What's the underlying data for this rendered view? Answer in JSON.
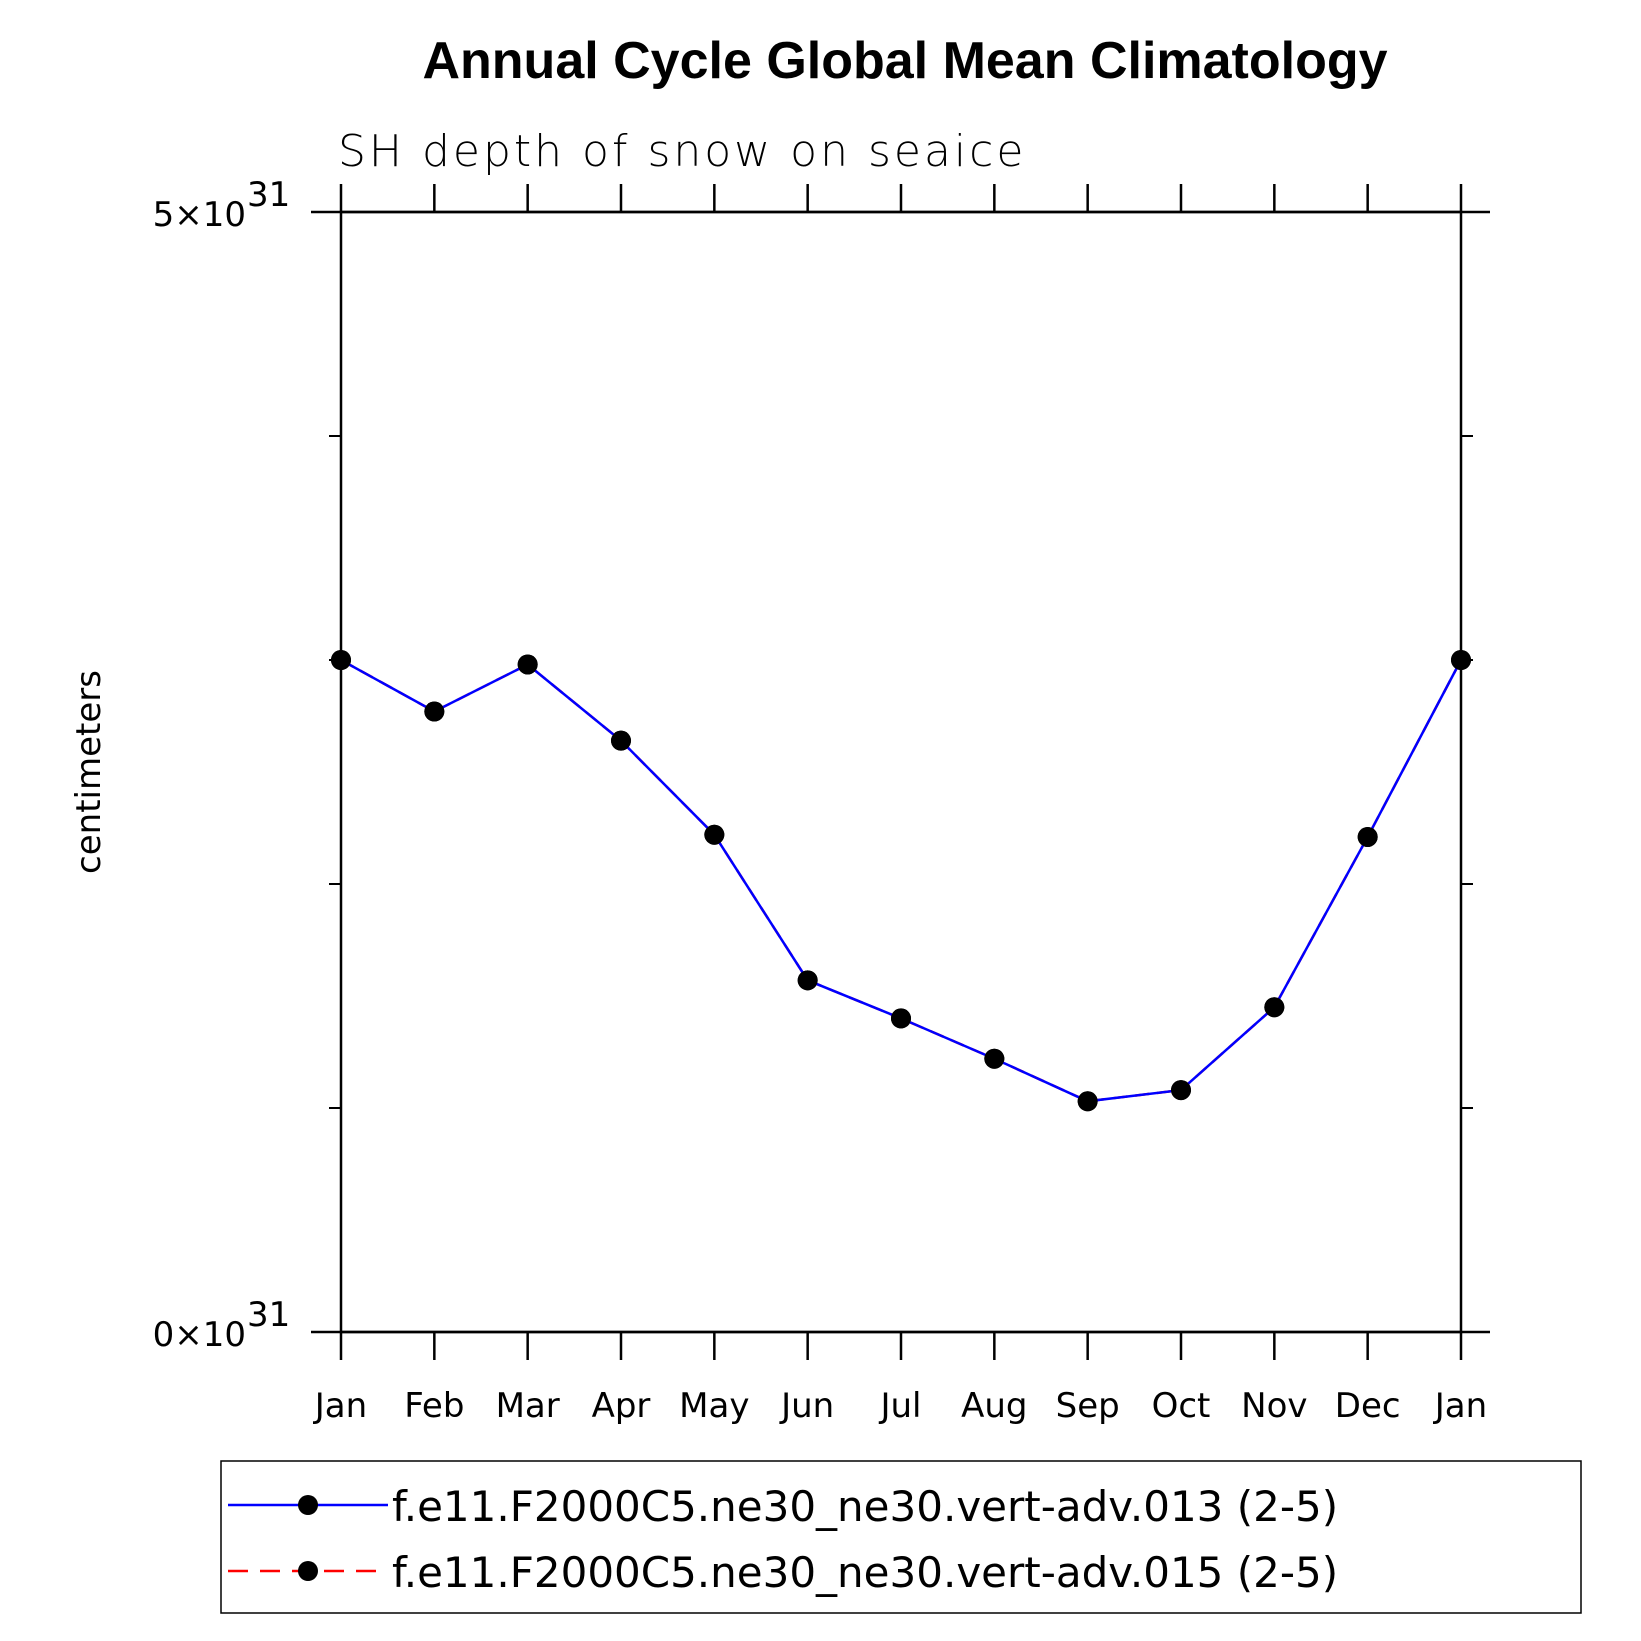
{
  "chart_data": {
    "type": "line",
    "title": "Annual Cycle Global Mean Climatology",
    "subtitle": "SH depth of snow on seaice",
    "xlabel": "",
    "ylabel": "centimeters",
    "categories": [
      "Jan",
      "Feb",
      "Mar",
      "Apr",
      "May",
      "Jun",
      "Jul",
      "Aug",
      "Sep",
      "Oct",
      "Nov",
      "Dec",
      "Jan"
    ],
    "ylim": [
      0,
      5
    ],
    "y_scale_label": "×10",
    "y_exponent": "31",
    "y_tick_labels": [
      {
        "value": 0,
        "mantissa": "0"
      },
      {
        "value": 5,
        "mantissa": "5"
      }
    ],
    "series": [
      {
        "name": "f.e11.F2000C5.ne30_ne30.vert-adv.013 (2-5)",
        "color": "#0000ff",
        "dash": "solid",
        "marker": "filled-circle",
        "values": [
          3.0,
          2.77,
          2.98,
          2.64,
          2.22,
          1.57,
          1.4,
          1.22,
          1.03,
          1.08,
          1.45,
          2.21,
          3.0
        ]
      },
      {
        "name": "f.e11.F2000C5.ne30_ne30.vert-adv.015 (2-5)",
        "color": "#ff0000",
        "dash": "dashed",
        "marker": "filled-circle",
        "values": [
          3.0,
          2.77,
          2.98,
          2.64,
          2.22,
          1.57,
          1.4,
          1.22,
          1.03,
          1.08,
          1.45,
          2.21,
          3.0
        ]
      }
    ],
    "legend_position": "bottom"
  }
}
